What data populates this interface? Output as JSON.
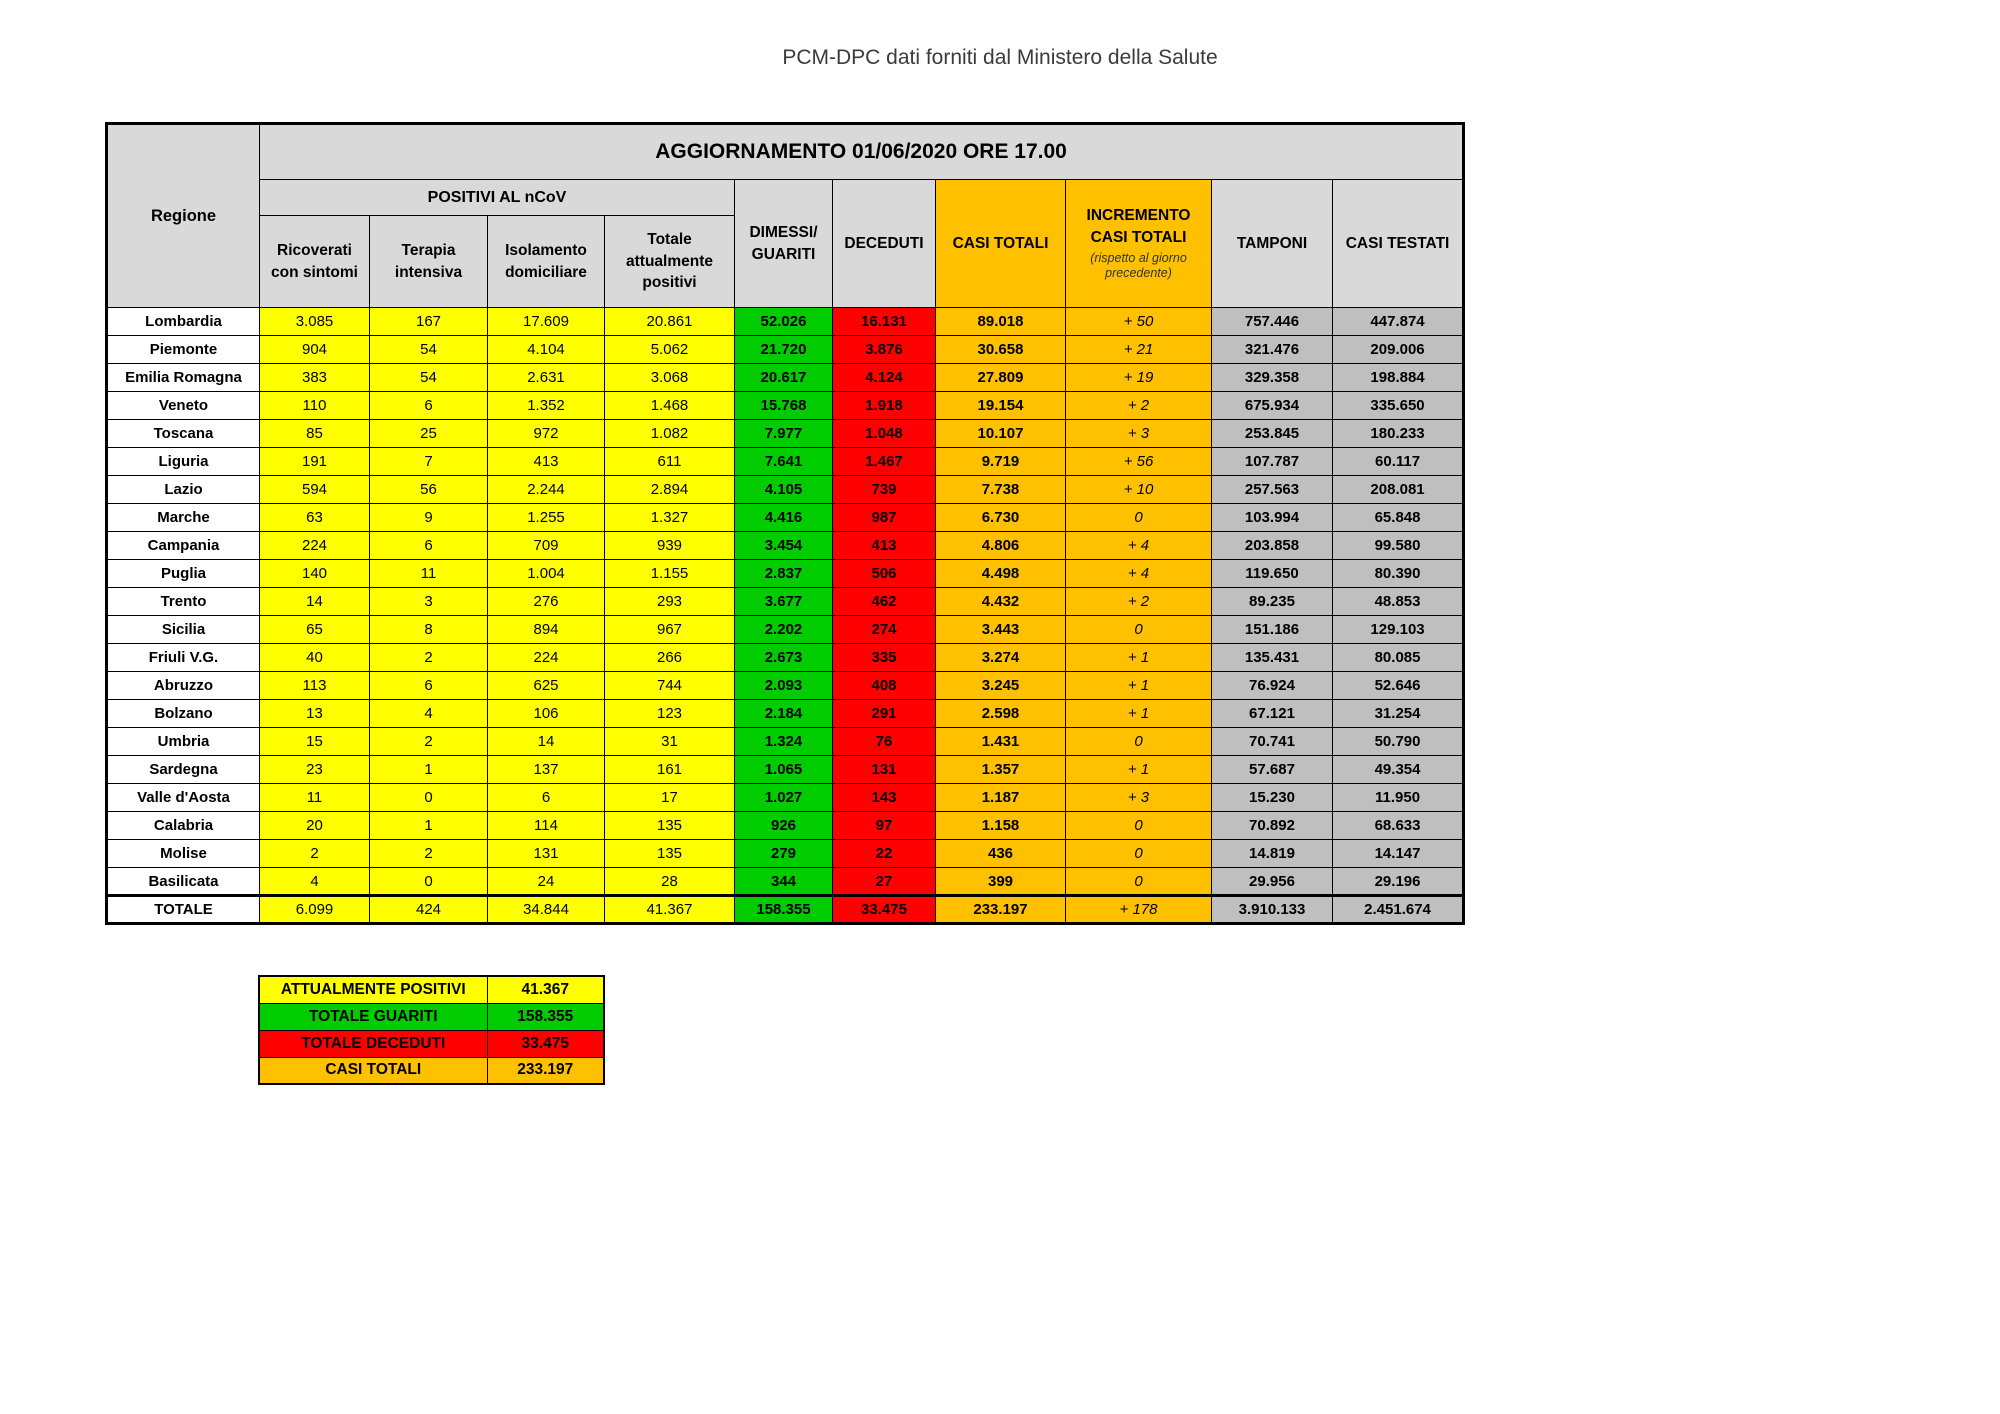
{
  "page_title": "PCM-DPC dati forniti dal Ministero della Salute",
  "table": {
    "update_header": "AGGIORNAMENTO 01/06/2020 ORE 17.00",
    "region_header": "Regione",
    "group_header": "POSITIVI AL nCoV",
    "subheaders": [
      "Ricoverati con sintomi",
      "Terapia intensiva",
      "Isolamento domiciliare",
      "Totale attualmente positivi"
    ],
    "dimessi_header": "DIMESSI/\nGUARITI",
    "deceduti_header": "DECEDUTI",
    "casi_totali_header": "CASI TOTALI",
    "incremento_header": "INCREMENTO\nCASI  TOTALI",
    "incremento_note": "(rispetto al giorno precedente)",
    "tamponi_header": "TAMPONI",
    "casi_testati_header": "CASI TESTATI"
  },
  "chart_data": {
    "type": "table",
    "title": "AGGIORNAMENTO 01/06/2020 ORE 17.00",
    "columns": [
      "Regione",
      "Ricoverati con sintomi",
      "Terapia intensiva",
      "Isolamento domiciliare",
      "Totale attualmente positivi",
      "DIMESSI/GUARITI",
      "DECEDUTI",
      "CASI TOTALI",
      "INCREMENTO CASI TOTALI (rispetto al giorno precedente)",
      "TAMPONI",
      "CASI TESTATI"
    ],
    "rows": [
      [
        "Lombardia",
        "3.085",
        "167",
        "17.609",
        "20.861",
        "52.026",
        "16.131",
        "89.018",
        "+ 50",
        "757.446",
        "447.874"
      ],
      [
        "Piemonte",
        "904",
        "54",
        "4.104",
        "5.062",
        "21.720",
        "3.876",
        "30.658",
        "+ 21",
        "321.476",
        "209.006"
      ],
      [
        "Emilia Romagna",
        "383",
        "54",
        "2.631",
        "3.068",
        "20.617",
        "4.124",
        "27.809",
        "+ 19",
        "329.358",
        "198.884"
      ],
      [
        "Veneto",
        "110",
        "6",
        "1.352",
        "1.468",
        "15.768",
        "1.918",
        "19.154",
        "+ 2",
        "675.934",
        "335.650"
      ],
      [
        "Toscana",
        "85",
        "25",
        "972",
        "1.082",
        "7.977",
        "1.048",
        "10.107",
        "+ 3",
        "253.845",
        "180.233"
      ],
      [
        "Liguria",
        "191",
        "7",
        "413",
        "611",
        "7.641",
        "1.467",
        "9.719",
        "+ 56",
        "107.787",
        "60.117"
      ],
      [
        "Lazio",
        "594",
        "56",
        "2.244",
        "2.894",
        "4.105",
        "739",
        "7.738",
        "+ 10",
        "257.563",
        "208.081"
      ],
      [
        "Marche",
        "63",
        "9",
        "1.255",
        "1.327",
        "4.416",
        "987",
        "6.730",
        "0",
        "103.994",
        "65.848"
      ],
      [
        "Campania",
        "224",
        "6",
        "709",
        "939",
        "3.454",
        "413",
        "4.806",
        "+ 4",
        "203.858",
        "99.580"
      ],
      [
        "Puglia",
        "140",
        "11",
        "1.004",
        "1.155",
        "2.837",
        "506",
        "4.498",
        "+ 4",
        "119.650",
        "80.390"
      ],
      [
        "Trento",
        "14",
        "3",
        "276",
        "293",
        "3.677",
        "462",
        "4.432",
        "+ 2",
        "89.235",
        "48.853"
      ],
      [
        "Sicilia",
        "65",
        "8",
        "894",
        "967",
        "2.202",
        "274",
        "3.443",
        "0",
        "151.186",
        "129.103"
      ],
      [
        "Friuli V.G.",
        "40",
        "2",
        "224",
        "266",
        "2.673",
        "335",
        "3.274",
        "+ 1",
        "135.431",
        "80.085"
      ],
      [
        "Abruzzo",
        "113",
        "6",
        "625",
        "744",
        "2.093",
        "408",
        "3.245",
        "+ 1",
        "76.924",
        "52.646"
      ],
      [
        "Bolzano",
        "13",
        "4",
        "106",
        "123",
        "2.184",
        "291",
        "2.598",
        "+ 1",
        "67.121",
        "31.254"
      ],
      [
        "Umbria",
        "15",
        "2",
        "14",
        "31",
        "1.324",
        "76",
        "1.431",
        "0",
        "70.741",
        "50.790"
      ],
      [
        "Sardegna",
        "23",
        "1",
        "137",
        "161",
        "1.065",
        "131",
        "1.357",
        "+ 1",
        "57.687",
        "49.354"
      ],
      [
        "Valle d'Aosta",
        "11",
        "0",
        "6",
        "17",
        "1.027",
        "143",
        "1.187",
        "+ 3",
        "15.230",
        "11.950"
      ],
      [
        "Calabria",
        "20",
        "1",
        "114",
        "135",
        "926",
        "97",
        "1.158",
        "0",
        "70.892",
        "68.633"
      ],
      [
        "Molise",
        "2",
        "2",
        "131",
        "135",
        "279",
        "22",
        "436",
        "0",
        "14.819",
        "14.147"
      ],
      [
        "Basilicata",
        "4",
        "0",
        "24",
        "28",
        "344",
        "27",
        "399",
        "0",
        "29.956",
        "29.196"
      ],
      [
        "TOTALE",
        "6.099",
        "424",
        "34.844",
        "41.367",
        "158.355",
        "33.475",
        "233.197",
        "+ 178",
        "3.910.133",
        "2.451.674"
      ]
    ]
  },
  "summary": {
    "rows": [
      {
        "label": "ATTUALMENTE POSITIVI",
        "value": "41.367",
        "color": "#FFFF00"
      },
      {
        "label": "TOTALE GUARITI",
        "value": "158.355",
        "color": "#00CC00"
      },
      {
        "label": "TOTALE DECEDUTI",
        "value": "33.475",
        "color": "#FF0000"
      },
      {
        "label": "CASI TOTALI",
        "value": "233.197",
        "color": "#FFC000"
      }
    ]
  },
  "colors": {
    "yellow": "#FFFF00",
    "green": "#00CC00",
    "red": "#FF0000",
    "orange": "#FFC000",
    "gray_data": "#BFBFBF",
    "gray_header": "#D9D9D9"
  }
}
